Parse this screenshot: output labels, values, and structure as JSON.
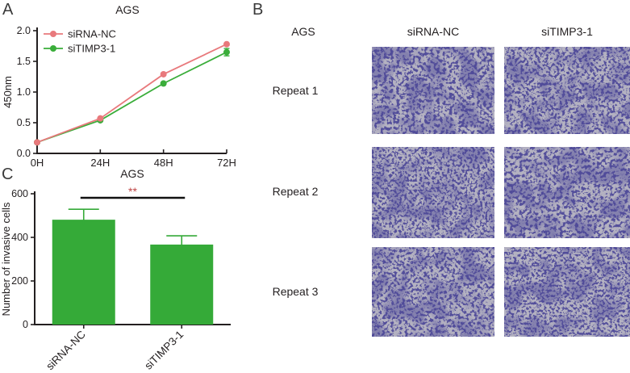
{
  "figure": {
    "panels": {
      "a_label": "A",
      "b_label": "B",
      "c_label": "C"
    },
    "panel_b": {
      "group_label": "AGS",
      "col_headers": [
        "siRNA-NC",
        "siTIMP3-1"
      ],
      "row_labels": [
        "Repeat 1",
        "Repeat 2",
        "Repeat 3"
      ],
      "stain_color": "#4c4798",
      "background_color": "#b4b2c1"
    }
  },
  "chart_data": [
    {
      "panel": "A",
      "type": "line",
      "title": "AGS",
      "x": [
        "0H",
        "24H",
        "48H",
        "72H"
      ],
      "xlabel": "",
      "ylabel": "450nm",
      "ylim": [
        0.0,
        2.0
      ],
      "yticks": [
        0.0,
        0.5,
        1.0,
        1.5,
        2.0
      ],
      "grid": false,
      "legend_position": "top-left",
      "series": [
        {
          "name": "siRNA-NC",
          "color": "#e8797c",
          "values": [
            0.18,
            0.57,
            1.29,
            1.78
          ],
          "errors": [
            0,
            0,
            0,
            0
          ]
        },
        {
          "name": "siTIMP3-1",
          "color": "#3aad3a",
          "values": [
            0.18,
            0.54,
            1.14,
            1.65
          ],
          "errors": [
            0,
            0,
            0,
            0.06
          ]
        }
      ]
    },
    {
      "panel": "C",
      "type": "bar",
      "title": "AGS",
      "categories": [
        "siRNA-NC",
        "siTIMP3-1"
      ],
      "values": [
        481,
        367
      ],
      "errors_upper": [
        48,
        40
      ],
      "xlabel": "",
      "ylabel": "Number of invasive cells",
      "ylim": [
        0,
        600
      ],
      "yticks": [
        0,
        200,
        400,
        600
      ],
      "bar_color": "#35aa38",
      "significance": {
        "label": "**",
        "color": "#bf4545",
        "between": [
          "siRNA-NC",
          "siTIMP3-1"
        ]
      }
    }
  ]
}
